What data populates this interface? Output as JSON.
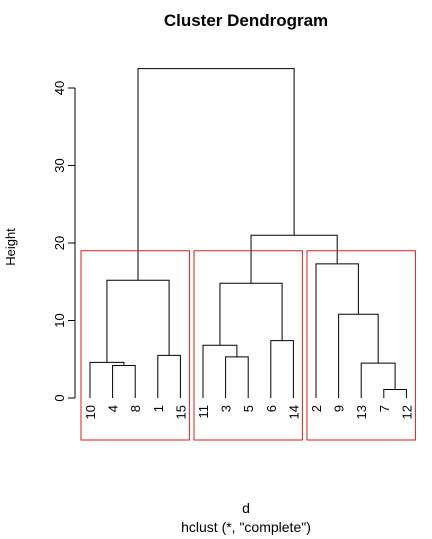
{
  "chart_data": {
    "type": "dendrogram",
    "title": "Cluster Dendrogram",
    "ylabel": "Height",
    "xlabel": "d",
    "sublabel": "hclust (*, \"complete\")",
    "ylim": [
      0,
      45
    ],
    "yticks": [
      0,
      10,
      20,
      30,
      40
    ],
    "leaf_order": [
      "10",
      "4",
      "8",
      "1",
      "15",
      "11",
      "3",
      "5",
      "6",
      "14",
      "2",
      "9",
      "13",
      "7",
      "12"
    ],
    "merges": [
      {
        "id": "m1",
        "left": "4",
        "right": "8",
        "height": 4.2
      },
      {
        "id": "m2",
        "left": "10",
        "right": "m1",
        "height": 4.6
      },
      {
        "id": "m3",
        "left": "1",
        "right": "15",
        "height": 5.5
      },
      {
        "id": "m4",
        "left": "m2",
        "right": "m3",
        "height": 15.2
      },
      {
        "id": "m5",
        "left": "3",
        "right": "5",
        "height": 5.3
      },
      {
        "id": "m6",
        "left": "11",
        "right": "m5",
        "height": 6.8
      },
      {
        "id": "m7",
        "left": "6",
        "right": "14",
        "height": 7.4
      },
      {
        "id": "m8",
        "left": "m6",
        "right": "m7",
        "height": 14.8
      },
      {
        "id": "m9",
        "left": "7",
        "right": "12",
        "height": 1.1
      },
      {
        "id": "m10",
        "left": "13",
        "right": "m9",
        "height": 4.5
      },
      {
        "id": "m11",
        "left": "9",
        "right": "m10",
        "height": 10.8
      },
      {
        "id": "m12",
        "left": "2",
        "right": "m11",
        "height": 17.3
      },
      {
        "id": "m13",
        "left": "m8",
        "right": "m12",
        "height": 21.0
      },
      {
        "id": "m14",
        "left": "m4",
        "right": "m13",
        "height": 42.5
      }
    ],
    "cut_clusters": [
      {
        "leaves": [
          "10",
          "4",
          "8",
          "1",
          "15"
        ]
      },
      {
        "leaves": [
          "11",
          "3",
          "5",
          "6",
          "14"
        ]
      },
      {
        "leaves": [
          "2",
          "9",
          "13",
          "7",
          "12"
        ]
      }
    ],
    "cut_box_color": "#cc2222",
    "line_color": "#000000"
  }
}
